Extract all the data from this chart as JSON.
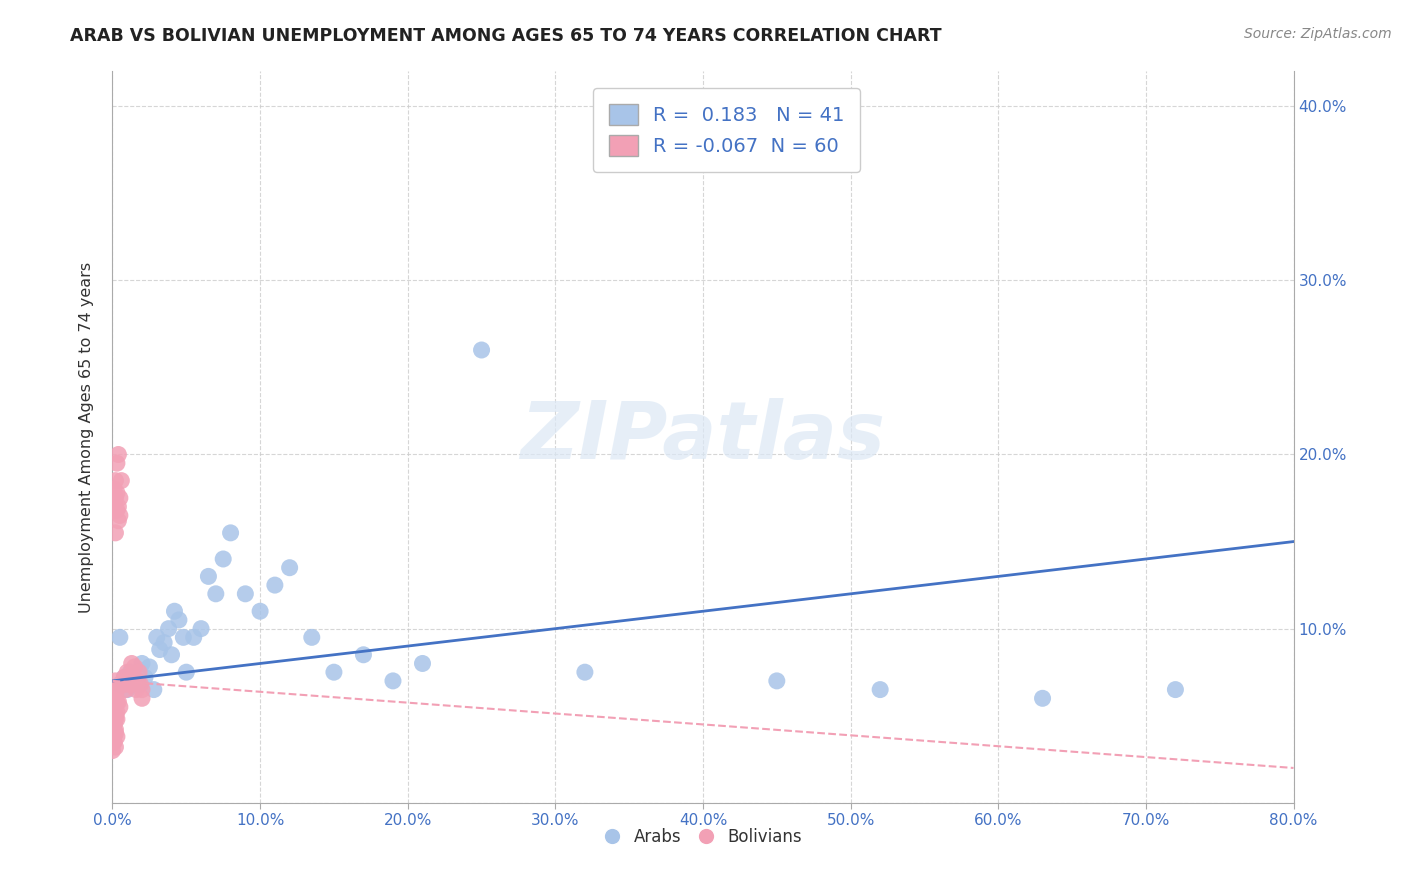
{
  "title": "ARAB VS BOLIVIAN UNEMPLOYMENT AMONG AGES 65 TO 74 YEARS CORRELATION CHART",
  "source": "Source: ZipAtlas.com",
  "ylabel": "Unemployment Among Ages 65 to 74 years",
  "arab_R": 0.183,
  "arab_N": 41,
  "bolivian_R": -0.067,
  "bolivian_N": 60,
  "arab_color": "#a8c4e8",
  "bolivian_color": "#f2a0b5",
  "arab_line_color": "#4472c4",
  "bolivian_line_color": "#f2a0b5",
  "xlim": [
    0,
    0.8
  ],
  "ylim": [
    0,
    0.42
  ],
  "x_ticks": [
    0.0,
    0.1,
    0.2,
    0.3,
    0.4,
    0.5,
    0.6,
    0.7,
    0.8
  ],
  "x_tick_labels": [
    "0.0%",
    "10.0%",
    "20.0%",
    "30.0%",
    "40.0%",
    "50.0%",
    "60.0%",
    "70.0%",
    "80.0%"
  ],
  "y_ticks": [
    0.0,
    0.1,
    0.2,
    0.3,
    0.4
  ],
  "y_tick_labels_right": [
    "",
    "10.0%",
    "20.0%",
    "30.0%",
    "40.0%"
  ],
  "background_color": "#ffffff",
  "grid_color": "#cccccc",
  "watermark": "ZIPatlas",
  "arab_line_y0": 0.07,
  "arab_line_y1": 0.15,
  "bolivian_line_y0": 0.07,
  "bolivian_line_y1": 0.02,
  "arab_x": [
    0.005,
    0.008,
    0.01,
    0.012,
    0.015,
    0.018,
    0.02,
    0.022,
    0.025,
    0.028,
    0.03,
    0.032,
    0.035,
    0.038,
    0.04,
    0.042,
    0.045,
    0.048,
    0.05,
    0.055,
    0.06,
    0.065,
    0.07,
    0.075,
    0.08,
    0.09,
    0.1,
    0.11,
    0.12,
    0.135,
    0.15,
    0.17,
    0.19,
    0.21,
    0.25,
    0.32,
    0.45,
    0.52,
    0.63,
    0.72,
    0.005
  ],
  "arab_y": [
    0.068,
    0.072,
    0.065,
    0.075,
    0.07,
    0.068,
    0.08,
    0.072,
    0.078,
    0.065,
    0.095,
    0.088,
    0.092,
    0.1,
    0.085,
    0.11,
    0.105,
    0.095,
    0.075,
    0.095,
    0.1,
    0.13,
    0.12,
    0.14,
    0.155,
    0.12,
    0.11,
    0.125,
    0.135,
    0.095,
    0.075,
    0.085,
    0.07,
    0.08,
    0.26,
    0.075,
    0.07,
    0.065,
    0.06,
    0.065,
    0.095
  ],
  "bolivian_x": [
    0.002,
    0.003,
    0.004,
    0.005,
    0.006,
    0.008,
    0.008,
    0.009,
    0.01,
    0.01,
    0.012,
    0.013,
    0.014,
    0.015,
    0.016,
    0.017,
    0.018,
    0.019,
    0.02,
    0.02,
    0.0,
    0.001,
    0.001,
    0.002,
    0.002,
    0.003,
    0.003,
    0.004,
    0.004,
    0.005,
    0.0,
    0.001,
    0.001,
    0.002,
    0.002,
    0.003,
    0.003,
    0.001,
    0.002,
    0.002,
    0.0,
    0.001,
    0.001,
    0.002,
    0.003,
    0.004,
    0.005,
    0.001,
    0.002,
    0.003,
    0.0,
    0.001,
    0.002,
    0.001,
    0.002,
    0.001,
    0.003,
    0.002,
    0.001,
    0.0
  ],
  "bolivian_y": [
    0.185,
    0.195,
    0.2,
    0.175,
    0.185,
    0.068,
    0.072,
    0.065,
    0.075,
    0.07,
    0.068,
    0.08,
    0.072,
    0.078,
    0.065,
    0.07,
    0.075,
    0.068,
    0.06,
    0.065,
    0.168,
    0.172,
    0.18,
    0.155,
    0.175,
    0.168,
    0.178,
    0.162,
    0.17,
    0.165,
    0.06,
    0.065,
    0.058,
    0.07,
    0.062,
    0.058,
    0.065,
    0.055,
    0.062,
    0.06,
    0.055,
    0.058,
    0.062,
    0.048,
    0.052,
    0.058,
    0.055,
    0.045,
    0.05,
    0.048,
    0.042,
    0.045,
    0.04,
    0.038,
    0.042,
    0.035,
    0.038,
    0.032,
    0.035,
    0.03
  ]
}
